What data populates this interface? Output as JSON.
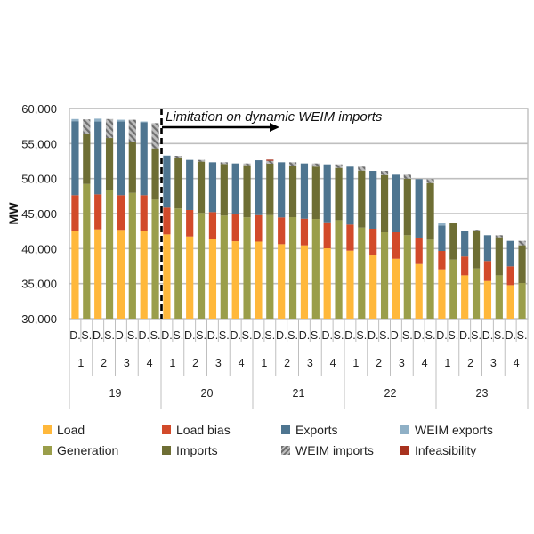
{
  "chart_data": {
    "type": "bar",
    "stacked": true,
    "title": "",
    "xlabel": "",
    "ylabel": "MW",
    "ylim": [
      30000,
      60000
    ],
    "yticks": [
      30000,
      35000,
      40000,
      45000,
      50000,
      55000,
      60000
    ],
    "ytick_labels": [
      "30,000",
      "35,000",
      "40,000",
      "45,000",
      "50,000",
      "55,000",
      "60,000"
    ],
    "grid": true,
    "legend_position": "bottom",
    "annotation": {
      "text": "Limitation on dynamic WEIM imports",
      "starts_before_group": "20",
      "style": "dashed vertical line with right arrow"
    },
    "series_defs": {
      "D": [
        {
          "key": "load",
          "name": "Load",
          "color": "#FFB83B"
        },
        {
          "key": "load_bias",
          "name": "Load bias",
          "color": "#D24A2A"
        },
        {
          "key": "exports",
          "name": "Exports",
          "color": "#4E7590"
        },
        {
          "key": "weim_exports",
          "name": "WEIM exports",
          "color": "#8FB0C6"
        }
      ],
      "S": [
        {
          "key": "generation",
          "name": "Generation",
          "color": "#9A9E4A"
        },
        {
          "key": "imports",
          "name": "Imports",
          "color": "#6E6E34"
        },
        {
          "key": "weim_imports",
          "name": "WEIM imports",
          "color": "#9A9A9A",
          "pattern": "hatched"
        },
        {
          "key": "infeasibility",
          "name": "Infeasibility",
          "color": "#A8321F"
        }
      ]
    },
    "legend": [
      {
        "name": "Load",
        "color": "#FFB83B"
      },
      {
        "name": "Load bias",
        "color": "#D24A2A"
      },
      {
        "name": "Exports",
        "color": "#4E7590"
      },
      {
        "name": "WEIM exports",
        "color": "#8FB0C6"
      },
      {
        "name": "Generation",
        "color": "#9A9E4A"
      },
      {
        "name": "Imports",
        "color": "#6E6E34"
      },
      {
        "name": "WEIM imports",
        "color": "#9A9A9A",
        "pattern": "hatched"
      },
      {
        "name": "Infeasibility",
        "color": "#A8321F"
      }
    ],
    "groups": [
      {
        "label": "19",
        "subgroups": [
          {
            "label": "1",
            "D": {
              "load": 42540,
              "load_bias": 5090,
              "exports": 10570,
              "weim_exports": 300
            },
            "S": {
              "generation": 49230,
              "imports": 7120,
              "weim_imports": 2100,
              "infeasibility": 0
            }
          },
          {
            "label": "2",
            "D": {
              "load": 42750,
              "load_bias": 5000,
              "exports": 10400,
              "weim_exports": 400
            },
            "S": {
              "generation": 48430,
              "imports": 7370,
              "weim_imports": 2700,
              "infeasibility": 0
            }
          },
          {
            "label": "3",
            "D": {
              "load": 42670,
              "load_bias": 4960,
              "exports": 10520,
              "weim_exports": 250
            },
            "S": {
              "generation": 47960,
              "imports": 7290,
              "weim_imports": 3150,
              "infeasibility": 0
            }
          },
          {
            "label": "4",
            "D": {
              "load": 42540,
              "load_bias": 5090,
              "exports": 10420,
              "weim_exports": 100
            },
            "S": {
              "generation": 46990,
              "imports": 7330,
              "weim_imports": 3600,
              "infeasibility": 0
            }
          }
        ]
      },
      {
        "label": "20",
        "subgroups": [
          {
            "label": "1",
            "D": {
              "load": 42030,
              "load_bias": 3820,
              "exports": 7410,
              "weim_exports": 50
            },
            "S": {
              "generation": 45730,
              "imports": 7240,
              "weim_imports": 290,
              "infeasibility": 0
            }
          },
          {
            "label": "2",
            "D": {
              "load": 41730,
              "load_bias": 3780,
              "exports": 7160,
              "weim_exports": 0
            },
            "S": {
              "generation": 45090,
              "imports": 7330,
              "weim_imports": 250,
              "infeasibility": 0
            }
          },
          {
            "label": "3",
            "D": {
              "load": 41400,
              "load_bias": 3810,
              "exports": 7120,
              "weim_exports": 0
            },
            "S": {
              "generation": 44710,
              "imports": 7370,
              "weim_imports": 250,
              "infeasibility": 0
            }
          },
          {
            "label": "4",
            "D": {
              "load": 41050,
              "load_bias": 3820,
              "exports": 7290,
              "weim_exports": 0
            },
            "S": {
              "generation": 44460,
              "imports": 7450,
              "weim_imports": 250,
              "infeasibility": 0
            }
          }
        ]
      },
      {
        "label": "21",
        "subgroups": [
          {
            "label": "1",
            "D": {
              "load": 41000,
              "load_bias": 3780,
              "exports": 7840,
              "weim_exports": 0
            },
            "S": {
              "generation": 44780,
              "imports": 7340,
              "weim_imports": 420,
              "infeasibility": 170
            }
          },
          {
            "label": "2",
            "D": {
              "load": 40630,
              "load_bias": 3820,
              "exports": 7880,
              "weim_exports": 0
            },
            "S": {
              "generation": 44490,
              "imports": 7370,
              "weim_imports": 470,
              "infeasibility": 0
            }
          },
          {
            "label": "3",
            "D": {
              "load": 40460,
              "load_bias": 3810,
              "exports": 7890,
              "weim_exports": 0
            },
            "S": {
              "generation": 44230,
              "imports": 7470,
              "weim_imports": 460,
              "infeasibility": 0
            }
          },
          {
            "label": "4",
            "D": {
              "load": 40040,
              "load_bias": 3720,
              "exports": 8270,
              "weim_exports": 0
            },
            "S": {
              "generation": 44060,
              "imports": 7460,
              "weim_imports": 510,
              "infeasibility": 0
            }
          }
        ]
      },
      {
        "label": "22",
        "subgroups": [
          {
            "label": "1",
            "D": {
              "load": 39700,
              "load_bias": 3730,
              "exports": 8270,
              "weim_exports": 0
            },
            "S": {
              "generation": 43000,
              "imports": 8140,
              "weim_imports": 560,
              "infeasibility": 0
            }
          },
          {
            "label": "2",
            "D": {
              "load": 39020,
              "load_bias": 3820,
              "exports": 8260,
              "weim_exports": 0
            },
            "S": {
              "generation": 42330,
              "imports": 8170,
              "weim_imports": 600,
              "infeasibility": 0
            }
          },
          {
            "label": "3",
            "D": {
              "load": 38550,
              "load_bias": 3780,
              "exports": 8220,
              "weim_exports": 0
            },
            "S": {
              "generation": 41910,
              "imports": 8080,
              "weim_imports": 560,
              "infeasibility": 0
            }
          },
          {
            "label": "4",
            "D": {
              "load": 37790,
              "load_bias": 3780,
              "exports": 8350,
              "weim_exports": 0
            },
            "S": {
              "generation": 41270,
              "imports": 8090,
              "weim_imports": 560,
              "infeasibility": 0
            }
          }
        ]
      },
      {
        "label": "23",
        "subgroups": [
          {
            "label": "1",
            "D": {
              "load": 37030,
              "load_bias": 2630,
              "exports": 3650,
              "weim_exports": 290
            },
            "S": {
              "generation": 38430,
              "imports": 5170,
              "weim_imports": 0,
              "infeasibility": 0
            }
          },
          {
            "label": "2",
            "D": {
              "load": 36180,
              "load_bias": 2690,
              "exports": 3690,
              "weim_exports": 0
            },
            "S": {
              "generation": 37160,
              "imports": 5360,
              "weim_imports": 170,
              "infeasibility": 0
            }
          },
          {
            "label": "3",
            "D": {
              "load": 35370,
              "load_bias": 2860,
              "exports": 3680,
              "weim_exports": 0
            },
            "S": {
              "generation": 36180,
              "imports": 5430,
              "weim_imports": 300,
              "infeasibility": 0
            }
          },
          {
            "label": "4",
            "D": {
              "load": 34780,
              "load_bias": 2680,
              "exports": 3640,
              "weim_exports": 0
            },
            "S": {
              "generation": 35080,
              "imports": 5390,
              "weim_imports": 630,
              "infeasibility": 0
            }
          }
        ]
      }
    ],
    "bar_type_labels": {
      "D": "D.",
      "S": "S."
    }
  }
}
